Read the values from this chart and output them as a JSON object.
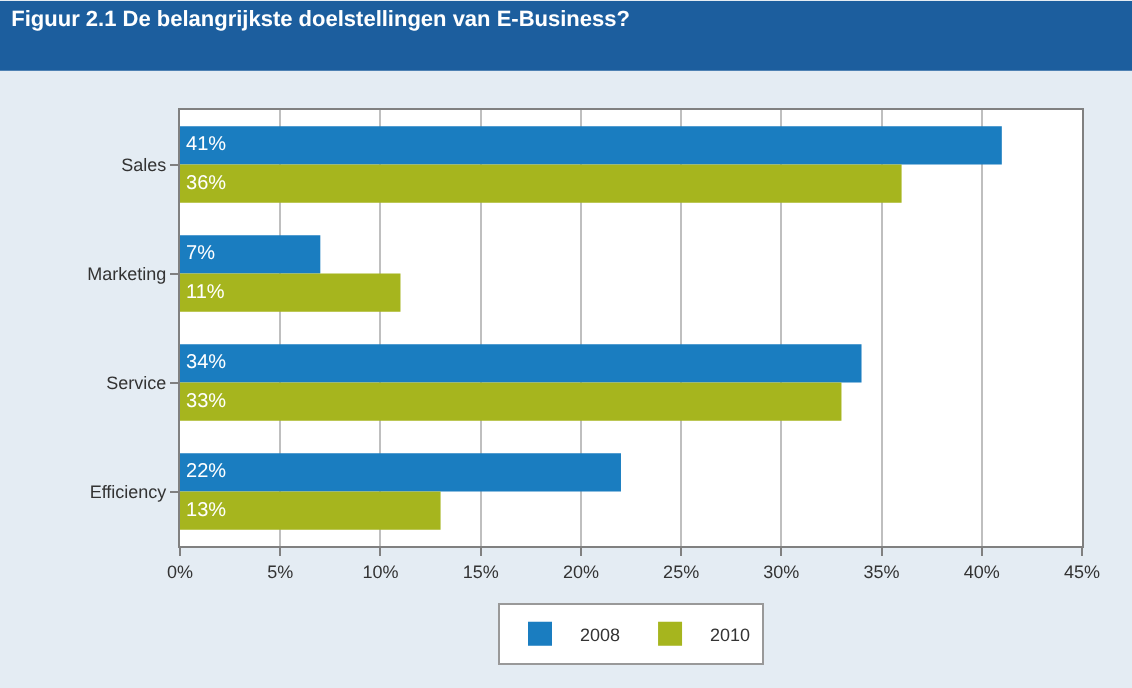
{
  "chart_data": {
    "type": "bar",
    "orientation": "horizontal",
    "title": "Figuur 2.1 De belangrijkste doelstellingen van E-Business?",
    "categories": [
      "Sales",
      "Marketing",
      "Service",
      "Efficiency"
    ],
    "series": [
      {
        "name": "2008",
        "color": "#1a7dc0",
        "values": [
          41,
          7,
          34,
          22
        ],
        "value_labels": [
          "41%",
          "7%",
          "34%",
          "22%"
        ]
      },
      {
        "name": "2010",
        "color": "#a6b51e",
        "values": [
          36,
          11,
          33,
          13
        ],
        "value_labels": [
          "36%",
          "11%",
          "33%",
          "13%"
        ]
      }
    ],
    "xlim": [
      0,
      45
    ],
    "xticks": [
      {
        "value": 0,
        "label": "0%"
      },
      {
        "value": 5,
        "label": "5%"
      },
      {
        "value": 10,
        "label": "10%"
      },
      {
        "value": 15,
        "label": "15%"
      },
      {
        "value": 20,
        "label": "20%"
      },
      {
        "value": 25,
        "label": "25%"
      },
      {
        "value": 30,
        "label": "30%"
      },
      {
        "value": 35,
        "label": "35%"
      },
      {
        "value": 40,
        "label": "40%"
      },
      {
        "value": 45,
        "label": "45%"
      }
    ],
    "grid": "x",
    "legend": "bottom"
  }
}
